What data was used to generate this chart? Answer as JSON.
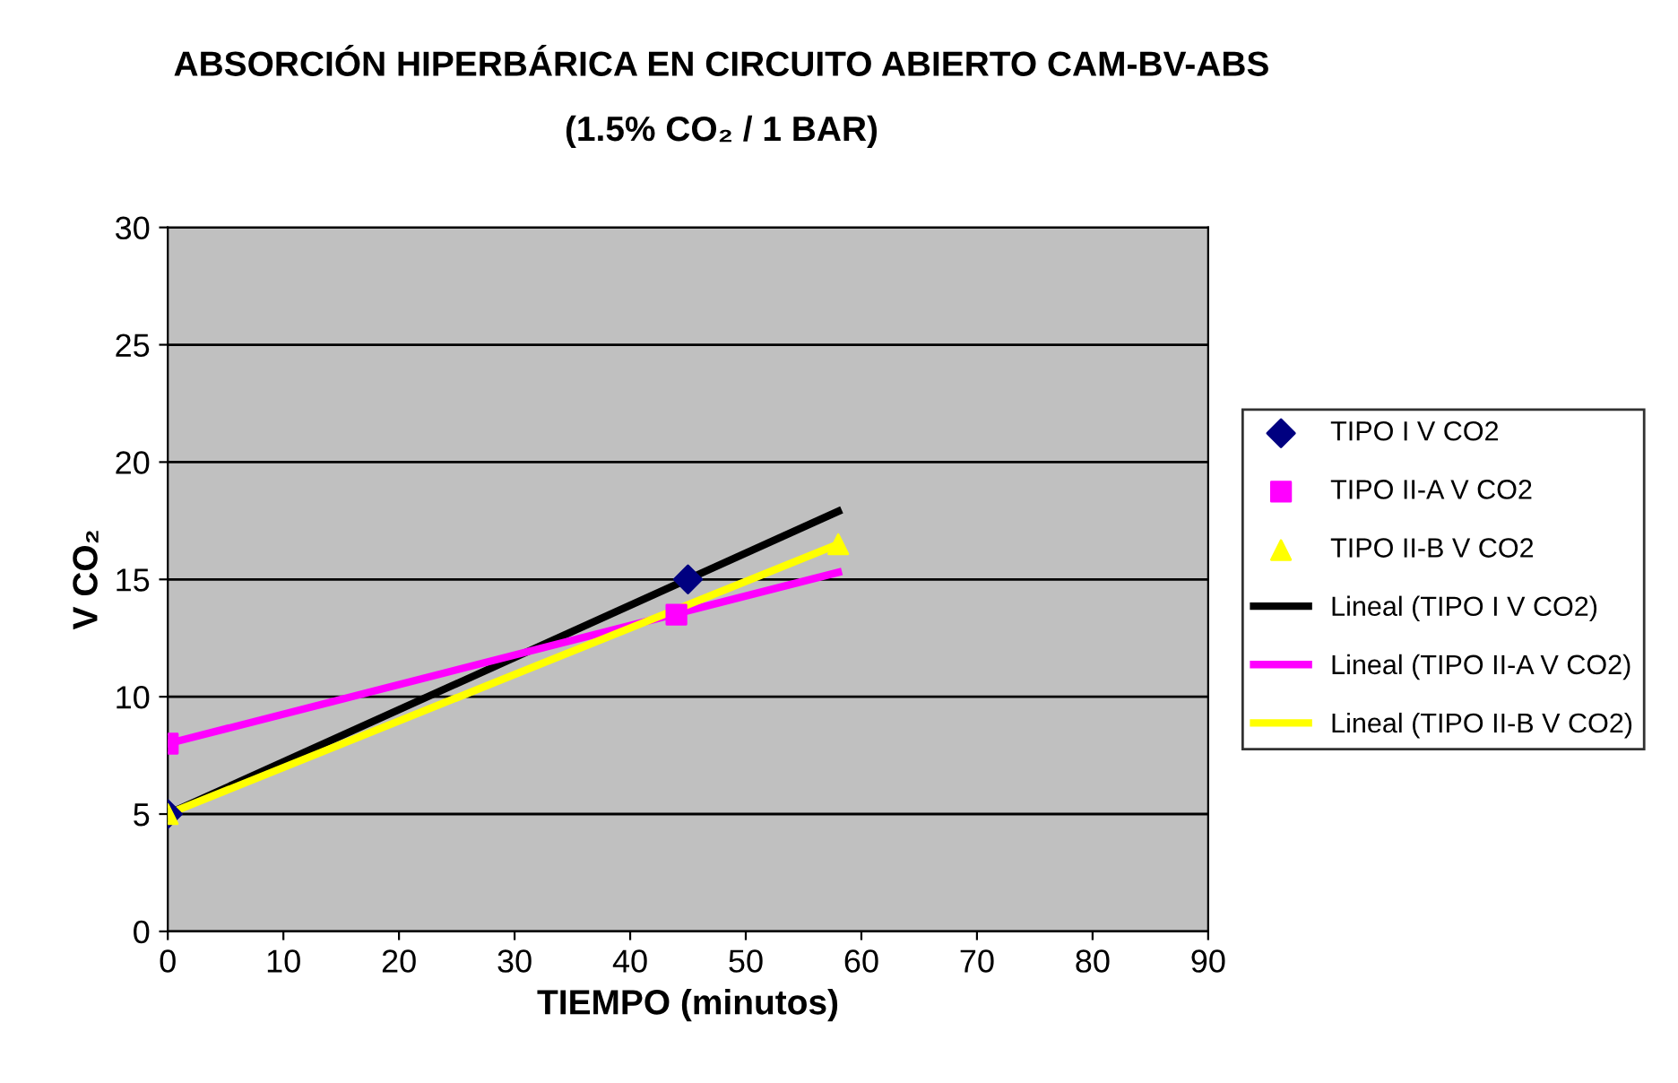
{
  "chart_data": {
    "type": "scatter",
    "title": "ABSORCIÓN HIPERBÁRICA EN CIRCUITO ABIERTO CAM-BV-ABS",
    "subtitle": "(1.5% CO₂ / 1 BAR)",
    "xlabel": "TIEMPO (minutos)",
    "ylabel": "V CO₂",
    "series": [
      {
        "name": "TIPO I V CO2",
        "marker": "diamond",
        "color": "#000080",
        "x": [
          0,
          45
        ],
        "values": [
          5,
          15
        ]
      },
      {
        "name": "TIPO II-A V CO2",
        "marker": "square",
        "color": "#ff00ff",
        "x": [
          0,
          44
        ],
        "values": [
          8,
          13.5
        ]
      },
      {
        "name": "TIPO II-B V CO2",
        "marker": "triangle",
        "color": "#ffff00",
        "x": [
          0,
          58
        ],
        "values": [
          5,
          16.5
        ]
      },
      {
        "name": "Lineal (TIPO I V CO2)",
        "type": "line",
        "marker": "none",
        "line_style": "solid",
        "color": "#000000",
        "x": [
          0,
          58
        ],
        "values": [
          5,
          17.9
        ]
      },
      {
        "name": "Lineal (TIPO II-A V CO2)",
        "type": "line",
        "marker": "none",
        "line_style": "solid",
        "color": "#ff00ff",
        "x": [
          0,
          58
        ],
        "values": [
          8,
          15.3
        ]
      },
      {
        "name": "Lineal (TIPO II-B V CO2)",
        "type": "line",
        "marker": "none",
        "line_style": "solid",
        "color": "#ffff00",
        "x": [
          0,
          58
        ],
        "values": [
          5,
          16.5
        ]
      }
    ],
    "xlim": [
      0,
      90
    ],
    "xticks": [
      0,
      10,
      20,
      30,
      40,
      50,
      60,
      70,
      80,
      90
    ],
    "ylim": [
      0,
      30
    ],
    "yticks": [
      0,
      5,
      10,
      15,
      20,
      25,
      30
    ],
    "grid": "y",
    "legend": "right"
  }
}
